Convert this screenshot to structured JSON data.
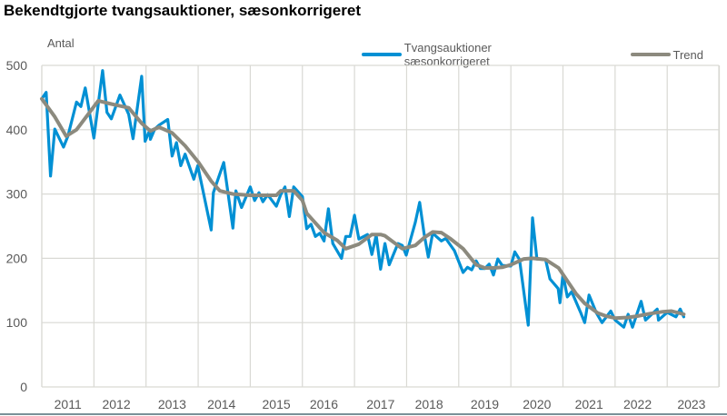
{
  "chart_data": {
    "type": "line",
    "title": "Bekendtgjorte tvangsauktioner, sæsonkorrigeret",
    "xlabel": "",
    "ylabel": "Antal",
    "ylim": [
      0,
      500
    ],
    "yticks": [
      0,
      100,
      200,
      300,
      400,
      500
    ],
    "xticks": [
      "2011",
      "2012",
      "2013",
      "2014",
      "2015",
      "2016",
      "2017",
      "2018",
      "2019",
      "2020",
      "2021",
      "2022",
      "2023"
    ],
    "grid": true,
    "legend_position": "top-right",
    "x_unit": "month index from Jan 2011",
    "series": [
      {
        "name": "Tvangsauktioner sæsonkorrigeret",
        "color": "#0090D4",
        "points": [
          [
            0,
            448
          ],
          [
            1,
            458
          ],
          [
            2,
            328
          ],
          [
            3,
            401
          ],
          [
            5,
            373
          ],
          [
            6,
            390
          ],
          [
            8,
            443
          ],
          [
            9,
            436
          ],
          [
            10,
            465
          ],
          [
            12,
            387
          ],
          [
            14,
            492
          ],
          [
            15,
            427
          ],
          [
            16,
            417
          ],
          [
            18,
            454
          ],
          [
            20,
            424
          ],
          [
            21,
            386
          ],
          [
            23,
            483
          ],
          [
            23.8,
            382
          ],
          [
            24.9,
            400
          ],
          [
            25,
            385
          ],
          [
            26,
            401
          ],
          [
            27,
            407
          ],
          [
            29,
            416
          ],
          [
            30,
            359
          ],
          [
            31,
            380
          ],
          [
            32,
            344
          ],
          [
            33,
            362
          ],
          [
            35,
            323
          ],
          [
            35.9,
            344
          ],
          [
            39,
            244
          ],
          [
            39.5,
            302
          ],
          [
            41.9,
            349
          ],
          [
            44,
            247
          ],
          [
            44.7,
            305
          ],
          [
            46,
            279
          ],
          [
            48,
            311
          ],
          [
            49,
            290
          ],
          [
            50,
            302
          ],
          [
            50.9,
            288
          ],
          [
            52,
            299
          ],
          [
            54,
            281
          ],
          [
            55,
            299
          ],
          [
            56,
            311
          ],
          [
            57,
            265
          ],
          [
            58,
            311
          ],
          [
            60,
            296
          ],
          [
            61,
            246
          ],
          [
            62,
            253
          ],
          [
            63,
            234
          ],
          [
            64,
            239
          ],
          [
            65,
            227
          ],
          [
            66,
            277
          ],
          [
            67,
            223
          ],
          [
            69,
            200
          ],
          [
            70,
            234
          ],
          [
            71,
            234
          ],
          [
            72,
            267
          ],
          [
            73,
            230
          ],
          [
            75,
            237
          ],
          [
            76,
            206
          ],
          [
            77,
            236
          ],
          [
            78,
            183
          ],
          [
            79,
            223
          ],
          [
            80,
            190
          ],
          [
            82,
            223
          ],
          [
            83,
            220
          ],
          [
            83.9,
            205
          ],
          [
            86,
            256
          ],
          [
            87,
            287
          ],
          [
            88,
            239
          ],
          [
            89,
            202
          ],
          [
            90,
            239
          ],
          [
            92,
            227
          ],
          [
            93,
            231
          ],
          [
            95,
            212
          ],
          [
            97,
            178
          ],
          [
            98,
            186
          ],
          [
            99,
            182
          ],
          [
            100,
            196
          ],
          [
            101,
            184
          ],
          [
            102,
            184
          ],
          [
            103,
            191
          ],
          [
            104,
            174
          ],
          [
            105,
            199
          ],
          [
            106,
            189
          ],
          [
            108,
            188
          ],
          [
            108.9,
            210
          ],
          [
            110,
            198
          ],
          [
            112,
            96
          ],
          [
            113,
            263
          ],
          [
            114,
            199
          ],
          [
            116,
            198
          ],
          [
            117,
            168
          ],
          [
            118.9,
            153
          ],
          [
            119.3,
            131
          ],
          [
            120,
            175
          ],
          [
            121,
            140
          ],
          [
            122,
            148
          ],
          [
            124,
            117
          ],
          [
            125,
            100
          ],
          [
            126,
            143
          ],
          [
            127.7,
            115
          ],
          [
            129,
            100
          ],
          [
            131,
            118
          ],
          [
            132,
            104
          ],
          [
            134,
            93
          ],
          [
            135,
            113
          ],
          [
            136,
            93
          ],
          [
            138,
            133
          ],
          [
            139,
            104
          ],
          [
            141.7,
            121
          ],
          [
            142,
            104
          ],
          [
            144,
            116
          ],
          [
            146,
            109
          ],
          [
            147,
            121
          ],
          [
            147.8,
            109
          ]
        ]
      },
      {
        "name": "Trend",
        "color": "#8C8A7E",
        "points": [
          [
            0,
            448
          ],
          [
            3,
            420
          ],
          [
            5.6,
            390
          ],
          [
            8,
            400
          ],
          [
            11,
            427
          ],
          [
            13,
            445
          ],
          [
            16,
            440
          ],
          [
            20,
            434
          ],
          [
            23,
            410
          ],
          [
            25,
            398
          ],
          [
            27,
            404
          ],
          [
            30,
            395
          ],
          [
            33,
            375
          ],
          [
            36,
            350
          ],
          [
            39,
            320
          ],
          [
            41,
            305
          ],
          [
            44,
            300
          ],
          [
            48,
            298
          ],
          [
            50,
            298
          ],
          [
            54,
            298
          ],
          [
            55,
            305
          ],
          [
            58,
            305
          ],
          [
            60,
            290
          ],
          [
            61,
            270
          ],
          [
            65,
            240
          ],
          [
            68,
            228
          ],
          [
            70,
            215
          ],
          [
            73,
            222
          ],
          [
            76,
            237
          ],
          [
            78,
            237
          ],
          [
            79,
            235
          ],
          [
            81,
            225
          ],
          [
            83,
            215
          ],
          [
            86,
            220
          ],
          [
            88,
            232
          ],
          [
            90,
            241
          ],
          [
            92,
            240
          ],
          [
            94,
            231
          ],
          [
            97,
            215
          ],
          [
            100,
            190
          ],
          [
            102,
            185
          ],
          [
            104,
            185
          ],
          [
            106,
            186
          ],
          [
            108,
            190
          ],
          [
            111,
            199
          ],
          [
            113,
            200
          ],
          [
            116,
            198
          ],
          [
            119,
            185
          ],
          [
            121,
            165
          ],
          [
            123,
            145
          ],
          [
            125,
            130
          ],
          [
            128,
            115
          ],
          [
            130,
            110
          ],
          [
            132,
            107
          ],
          [
            135,
            108
          ],
          [
            137,
            110
          ],
          [
            140,
            114
          ],
          [
            143,
            117
          ],
          [
            145,
            118
          ],
          [
            147.8,
            113
          ]
        ]
      }
    ]
  },
  "title": "Bekendtgjorte tvangsauktioner, sæsonkorrigeret",
  "y_axis_label": "Antal",
  "legend": {
    "items": [
      {
        "label": "Tvangsauktioner sæsonkorrigeret",
        "color": "#0090D4"
      },
      {
        "label": "Trend",
        "color": "#8C8A7E"
      }
    ]
  },
  "y_ticks": [
    "500",
    "400",
    "300",
    "200",
    "100",
    "0"
  ],
  "x_ticks": [
    "2011",
    "2012",
    "2013",
    "2014",
    "2015",
    "2016",
    "2017",
    "2018",
    "2019",
    "2020",
    "2021",
    "2022",
    "2023"
  ]
}
